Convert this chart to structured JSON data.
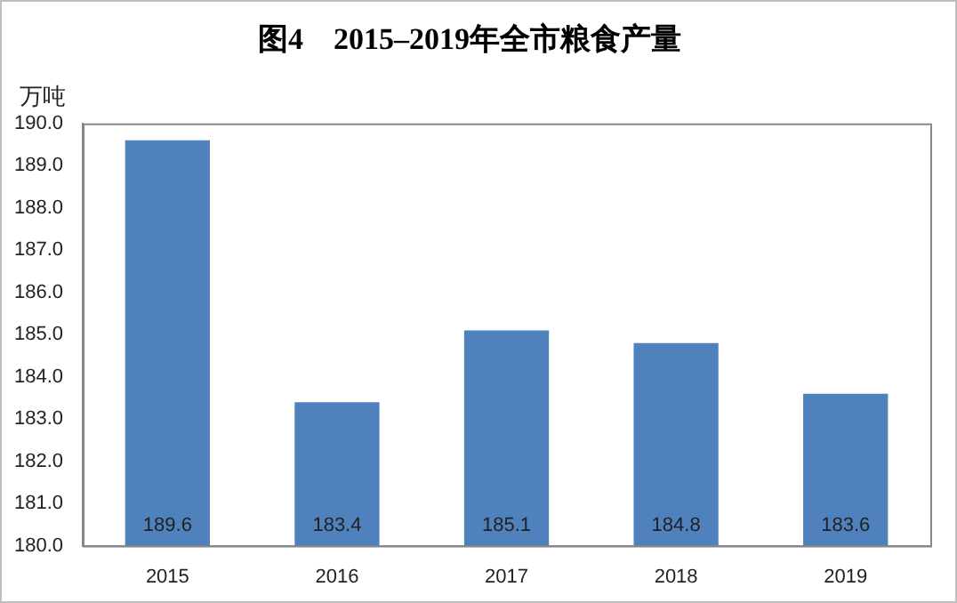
{
  "chart_data": {
    "type": "bar",
    "title": "图4　2015–2019年全市粮食产量",
    "ylabel": "万吨",
    "categories": [
      "2015",
      "2016",
      "2017",
      "2018",
      "2019"
    ],
    "values": [
      189.6,
      183.4,
      185.1,
      184.8,
      183.6
    ],
    "color": "#4f81bd",
    "ylim": [
      180,
      190
    ],
    "yticks": [
      {
        "value": 180,
        "label": "180.0"
      },
      {
        "value": 181,
        "label": "181.0"
      },
      {
        "value": 182,
        "label": "182.0"
      },
      {
        "value": 183,
        "label": "183.0"
      },
      {
        "value": 184,
        "label": "184.0"
      },
      {
        "value": 185,
        "label": "185.0"
      },
      {
        "value": 186,
        "label": "186.0"
      },
      {
        "value": 187,
        "label": "187.0"
      },
      {
        "value": 188,
        "label": "188.0"
      },
      {
        "value": 189,
        "label": "189.0"
      },
      {
        "value": 190,
        "label": "190.0"
      }
    ],
    "data_labels": true,
    "grid": false,
    "legend": false
  }
}
